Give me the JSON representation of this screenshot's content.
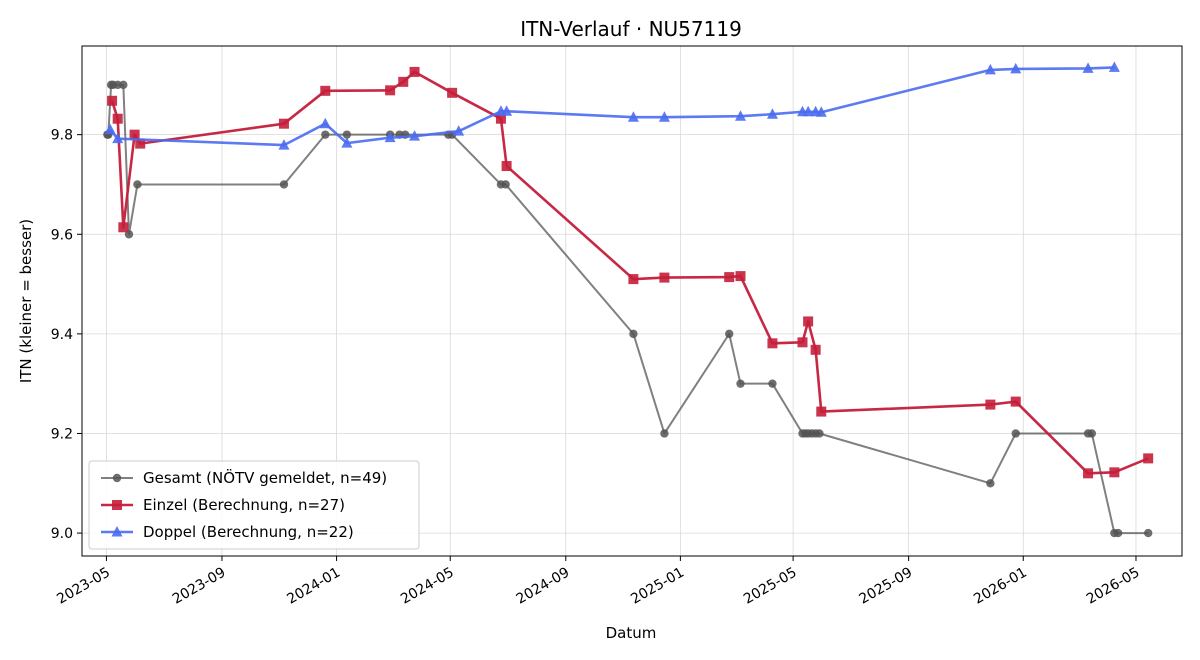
{
  "chart_data": {
    "type": "line",
    "title": "ITN-Verlauf · NU57119",
    "xlabel": "Datum",
    "ylabel": "ITN  (kleiner = besser)",
    "x_type": "date",
    "xlim": [
      "2023-04-05",
      "2026-06-19"
    ],
    "ylim": [
      8.954,
      9.978
    ],
    "x_ticks": [
      "2023-05-01",
      "2023-09-01",
      "2024-01-01",
      "2024-05-01",
      "2024-09-01",
      "2025-01-01",
      "2025-05-01",
      "2025-09-01",
      "2026-01-01",
      "2026-05-01"
    ],
    "x_tick_labels": [
      "2023-05",
      "2023-09",
      "2024-01",
      "2024-05",
      "2024-09",
      "2025-01",
      "2025-05",
      "2025-09",
      "2026-01",
      "2026-05"
    ],
    "y_ticks": [
      9.0,
      9.2,
      9.4,
      9.6,
      9.8
    ],
    "y_tick_labels": [
      "9.0",
      "9.2",
      "9.4",
      "9.6",
      "9.8"
    ],
    "grid": true,
    "legend_position": "lower-left",
    "series": [
      {
        "name": "Gesamt (NÖTV gemeldet, n=49)",
        "color": "#555555",
        "marker": "circle",
        "points": [
          [
            "2023-05-02",
            9.8
          ],
          [
            "2023-05-03",
            9.8
          ],
          [
            "2023-05-06",
            9.9
          ],
          [
            "2023-05-08",
            9.9
          ],
          [
            "2023-05-13",
            9.9
          ],
          [
            "2023-05-19",
            9.9
          ],
          [
            "2023-05-25",
            9.6
          ],
          [
            "2023-06-03",
            9.7
          ],
          [
            "2023-11-06",
            9.7
          ],
          [
            "2023-12-20",
            9.8
          ],
          [
            "2024-01-12",
            9.8
          ],
          [
            "2024-02-27",
            9.8
          ],
          [
            "2024-03-08",
            9.8
          ],
          [
            "2024-03-14",
            9.8
          ],
          [
            "2024-04-29",
            9.8
          ],
          [
            "2024-05-03",
            9.8
          ],
          [
            "2024-06-24",
            9.7
          ],
          [
            "2024-06-29",
            9.7
          ],
          [
            "2024-11-12",
            9.4
          ],
          [
            "2024-12-15",
            9.2
          ],
          [
            "2025-02-22",
            9.4
          ],
          [
            "2025-03-06",
            9.3
          ],
          [
            "2025-04-09",
            9.3
          ],
          [
            "2025-05-11",
            9.2
          ],
          [
            "2025-05-14",
            9.2
          ],
          [
            "2025-05-17",
            9.2
          ],
          [
            "2025-05-21",
            9.2
          ],
          [
            "2025-05-25",
            9.2
          ],
          [
            "2025-05-29",
            9.2
          ],
          [
            "2025-11-27",
            9.1
          ],
          [
            "2025-12-24",
            9.2
          ],
          [
            "2026-03-11",
            9.2
          ],
          [
            "2026-03-15",
            9.2
          ],
          [
            "2026-04-08",
            9.0
          ],
          [
            "2026-04-12",
            9.0
          ],
          [
            "2026-05-14",
            9.0
          ]
        ]
      },
      {
        "name": "Einzel (Berechnung, n=27)",
        "color": "#c41e3a",
        "marker": "square",
        "points": [
          [
            "2023-05-07",
            9.868
          ],
          [
            "2023-05-13",
            9.832
          ],
          [
            "2023-05-19",
            9.614
          ],
          [
            "2023-05-31",
            9.8
          ],
          [
            "2023-06-06",
            9.782
          ],
          [
            "2023-11-06",
            9.822
          ],
          [
            "2023-12-20",
            9.888
          ],
          [
            "2024-02-27",
            9.889
          ],
          [
            "2024-03-12",
            9.906
          ],
          [
            "2024-03-24",
            9.926
          ],
          [
            "2024-05-03",
            9.884
          ],
          [
            "2024-06-24",
            9.832
          ],
          [
            "2024-06-30",
            9.737
          ],
          [
            "2024-11-12",
            9.51
          ],
          [
            "2024-12-15",
            9.513
          ],
          [
            "2025-02-22",
            9.514
          ],
          [
            "2025-03-06",
            9.516
          ],
          [
            "2025-04-09",
            9.381
          ],
          [
            "2025-05-11",
            9.383
          ],
          [
            "2025-05-17",
            9.425
          ],
          [
            "2025-05-25",
            9.368
          ],
          [
            "2025-05-31",
            9.244
          ],
          [
            "2025-11-27",
            9.258
          ],
          [
            "2025-12-24",
            9.264
          ],
          [
            "2026-03-11",
            9.12
          ],
          [
            "2026-04-08",
            9.122
          ],
          [
            "2026-05-14",
            9.15
          ]
        ]
      },
      {
        "name": "Doppel (Berechnung, n=22)",
        "color": "#4a6cf0",
        "marker": "triangle",
        "points": [
          [
            "2023-05-05",
            9.81
          ],
          [
            "2023-05-13",
            9.792
          ],
          [
            "2023-11-06",
            9.779
          ],
          [
            "2023-12-20",
            9.822
          ],
          [
            "2024-01-12",
            9.783
          ],
          [
            "2024-02-27",
            9.794
          ],
          [
            "2024-03-24",
            9.797
          ],
          [
            "2024-05-10",
            9.807
          ],
          [
            "2024-06-24",
            9.847
          ],
          [
            "2024-06-30",
            9.847
          ],
          [
            "2024-11-12",
            9.835
          ],
          [
            "2024-12-15",
            9.835
          ],
          [
            "2025-03-06",
            9.837
          ],
          [
            "2025-04-09",
            9.841
          ],
          [
            "2025-05-11",
            9.846
          ],
          [
            "2025-05-17",
            9.846
          ],
          [
            "2025-05-25",
            9.846
          ],
          [
            "2025-05-31",
            9.845
          ],
          [
            "2025-11-27",
            9.93
          ],
          [
            "2025-12-24",
            9.932
          ],
          [
            "2026-03-11",
            9.933
          ],
          [
            "2026-04-08",
            9.935
          ]
        ]
      }
    ]
  }
}
